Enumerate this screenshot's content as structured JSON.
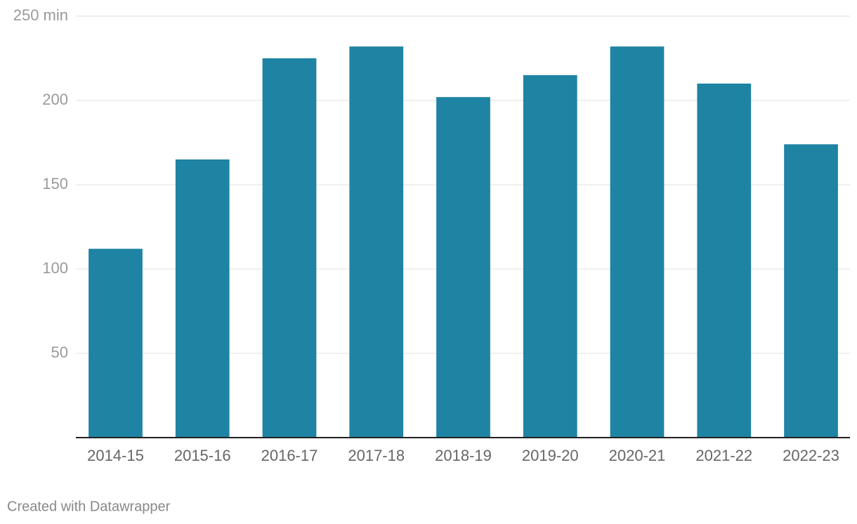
{
  "chart_data": {
    "type": "bar",
    "categories": [
      "2014-15",
      "2015-16",
      "2016-17",
      "2017-18",
      "2018-19",
      "2019-20",
      "2020-21",
      "2021-22",
      "2022-23"
    ],
    "values": [
      112,
      165,
      225,
      232,
      202,
      215,
      232,
      210,
      174
    ],
    "color": "#1f83a3",
    "ylim": [
      0,
      250
    ],
    "yticks": [
      50,
      100,
      150,
      200,
      {
        "value": 250,
        "label": "250 min"
      }
    ],
    "grid": true
  },
  "footer": {
    "credit": "Created with Datawrapper"
  }
}
